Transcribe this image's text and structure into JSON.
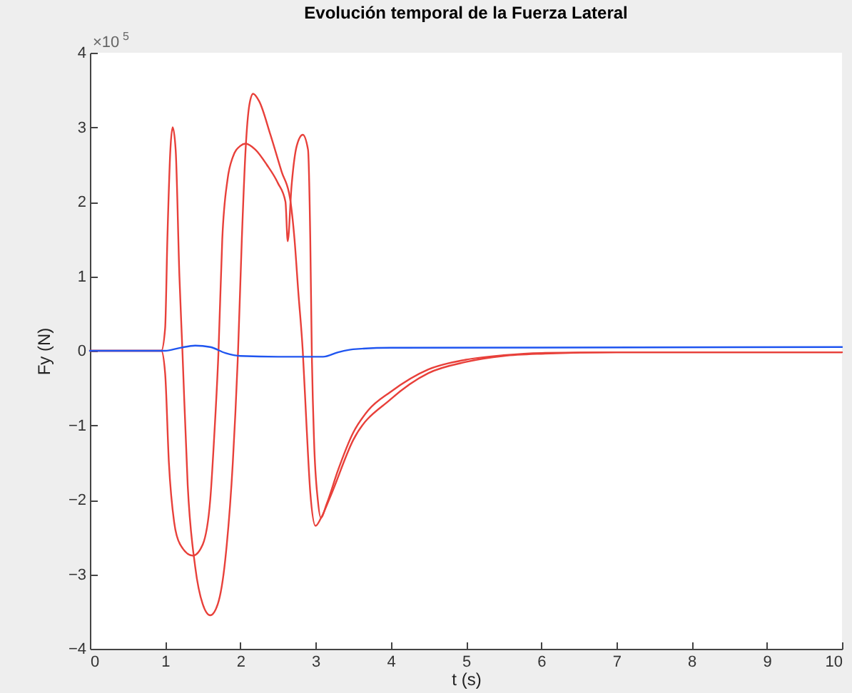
{
  "chart_data": {
    "type": "line",
    "title": "Evolución temporal de la Fuerza Lateral",
    "xlabel": "t (s)",
    "ylabel": "Fy (N)",
    "annotations": [
      "×10$^{5}$"
    ],
    "xlim": [
      0,
      10
    ],
    "ylim": [
      -4,
      4
    ],
    "xticks": [
      0,
      1,
      2,
      3,
      4,
      5,
      6,
      7,
      8,
      9,
      10
    ],
    "yticks": [
      -4,
      -3,
      -2,
      -1,
      0,
      1,
      2,
      3,
      4
    ],
    "grid": false,
    "legend": false,
    "line_style": "solid",
    "marker": "none",
    "series": [
      {
        "color": "#e8403a",
        "x": [
          0,
          0.95,
          1.0,
          1.03,
          1.07,
          1.1,
          1.14,
          1.19,
          1.23,
          1.3,
          1.4,
          1.5,
          1.6,
          1.7,
          1.8,
          1.9,
          1.97,
          2.02,
          2.07,
          2.12,
          2.17,
          2.25,
          2.4,
          2.55,
          2.66,
          2.72,
          2.77,
          2.83,
          2.88,
          2.93,
          3.0,
          3.07,
          3.2,
          3.5,
          4.0,
          4.5,
          5,
          5.5,
          6,
          7,
          8,
          10
        ],
        "values": [
          0,
          0,
          0.3,
          1.5,
          2.7,
          3.0,
          2.7,
          1.0,
          0,
          -1.8,
          -2.9,
          -3.4,
          -3.55,
          -3.4,
          -2.8,
          -1.5,
          0,
          1.5,
          2.7,
          3.3,
          3.45,
          3.35,
          2.9,
          2.4,
          2.05,
          1.5,
          0.8,
          0,
          -1.0,
          -1.9,
          -2.35,
          -2.25,
          -1.95,
          -1.2,
          -0.65,
          -0.3,
          -0.15,
          -0.07,
          -0.04,
          -0.02,
          -0.02,
          -0.02
        ]
      },
      {
        "color": "#e8403a",
        "x": [
          0,
          0.95,
          1.0,
          1.05,
          1.12,
          1.2,
          1.37,
          1.5,
          1.6,
          1.65,
          1.71,
          1.76,
          1.83,
          1.9,
          2.0,
          2.07,
          2.2,
          2.35,
          2.5,
          2.6,
          2.63,
          2.68,
          2.75,
          2.83,
          2.9,
          2.93,
          2.95,
          2.98,
          3.03,
          3.07,
          3.15,
          3.3,
          3.5,
          3.7,
          4.0,
          4.5,
          5,
          5.5,
          6,
          7,
          10
        ],
        "values": [
          0,
          0,
          -0.3,
          -1.5,
          -2.3,
          -2.6,
          -2.75,
          -2.6,
          -2.0,
          -1.2,
          0,
          1.5,
          2.3,
          2.6,
          2.75,
          2.78,
          2.7,
          2.5,
          2.25,
          2.0,
          1.47,
          2.2,
          2.75,
          2.9,
          2.7,
          1.5,
          0,
          -1.2,
          -2.0,
          -2.24,
          -2.05,
          -1.6,
          -1.1,
          -0.8,
          -0.55,
          -0.25,
          -0.12,
          -0.06,
          -0.03,
          -0.02,
          -0.02
        ]
      },
      {
        "color": "#1f55f0",
        "x": [
          0,
          1.0,
          1.2,
          1.4,
          1.6,
          1.8,
          2.0,
          2.5,
          3.1,
          3.3,
          3.5,
          4,
          10
        ],
        "values": [
          0,
          0,
          0.04,
          0.07,
          0.05,
          -0.03,
          -0.07,
          -0.08,
          -0.08,
          -0.02,
          0.02,
          0.04,
          0.05
        ]
      }
    ]
  }
}
